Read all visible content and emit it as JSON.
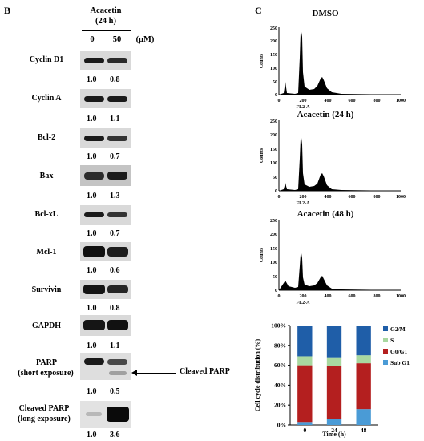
{
  "panel_b": {
    "label": "B",
    "treatment": "Acacetin",
    "duration": "(24 h)",
    "dose_0": "0",
    "dose_50": "50",
    "unit": "(μM)",
    "blots": [
      {
        "name": "Cyclin D1",
        "r1": "1.0",
        "r2": "0.8"
      },
      {
        "name": "Cyclin A",
        "r1": "1.0",
        "r2": "1.1"
      },
      {
        "name": "Bcl-2",
        "r1": "1.0",
        "r2": "0.7"
      },
      {
        "name": "Bax",
        "r1": "1.0",
        "r2": "1.3"
      },
      {
        "name": "Bcl-xL",
        "r1": "1.0",
        "r2": "0.7"
      },
      {
        "name": "Mcl-1",
        "r1": "1.0",
        "r2": "0.6"
      },
      {
        "name": "Survivin",
        "r1": "1.0",
        "r2": "0.8"
      },
      {
        "name": "GAPDH",
        "r1": "1.0",
        "r2": "1.1"
      }
    ],
    "parp": {
      "line1": "PARP",
      "line2": "(short exposure)",
      "r1": "1.0",
      "r2": "0.5",
      "annotation": "Cleaved PARP"
    },
    "cleaved_parp": {
      "line1": "Cleaved PARP",
      "line2": "(long exposure)",
      "r1": "1.0",
      "r2": "3.6"
    }
  },
  "panel_c": {
    "label": "C",
    "histograms": [
      {
        "title": "DMSO",
        "ylabel": "Counts",
        "xlabel": "FL2-A",
        "yticks": [
          "0",
          "50",
          "100",
          "150",
          "200",
          "250"
        ]
      },
      {
        "title": "Acacetin (24 h)",
        "ylabel": "Counts",
        "xlabel": "FL2-A",
        "yticks": [
          "0",
          "50",
          "100",
          "150",
          "200",
          "250"
        ]
      },
      {
        "title": "Acacetin (48 h)",
        "ylabel": "Counts",
        "xlabel": "FL2-A",
        "yticks": [
          "0",
          "50",
          "100",
          "150",
          "200",
          "250"
        ]
      }
    ],
    "xticks": [
      "0",
      "200",
      "400",
      "600",
      "800",
      "1000"
    ]
  },
  "chart_data": {
    "type": "bar",
    "stacked": true,
    "categories": [
      "0",
      "24",
      "48"
    ],
    "series": [
      {
        "name": "Sub G1",
        "color": "#4a9bd6",
        "values": [
          3,
          6,
          16
        ]
      },
      {
        "name": "G0/G1",
        "color": "#b41f1f",
        "values": [
          57,
          53,
          46
        ]
      },
      {
        "name": "S",
        "color": "#a8d8a0",
        "values": [
          9,
          9,
          8
        ]
      },
      {
        "name": "G2/M",
        "color": "#1f5ea8",
        "values": [
          31,
          32,
          30
        ]
      }
    ],
    "xlabel": "Time (h)",
    "ylabel": "Cell cycle distribution (%)",
    "yticks": [
      "0%",
      "20%",
      "40%",
      "60%",
      "80%",
      "100%"
    ],
    "ylim": [
      0,
      100
    ],
    "legend_position": "right"
  }
}
